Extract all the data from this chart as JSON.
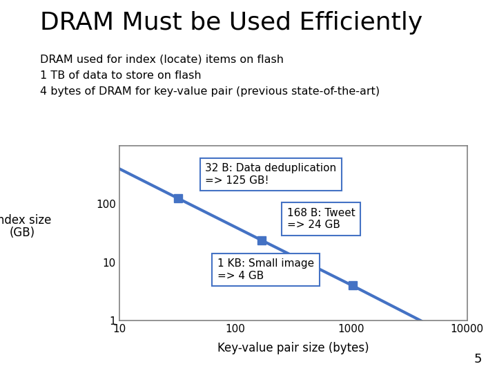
{
  "title": "DRAM Must be Used Efficiently",
  "subtitle_lines": [
    "DRAM used for index (locate) items on flash",
    "1 TB of data to store on flash",
    "4 bytes of DRAM for key-value pair (previous state-of-the-art)"
  ],
  "xlabel": "Key-value pair size (bytes)",
  "ylabel_line1": "Index size",
  "ylabel_line2": "(GB)",
  "line_color": "#4472C4",
  "line_width": 3.0,
  "marker_color": "#4472C4",
  "marker_size": 8,
  "data_points_x": [
    32,
    168,
    1024
  ],
  "data_points_y": [
    125,
    24,
    4
  ],
  "line_x": [
    10,
    32,
    168,
    1024,
    4000
  ],
  "line_y": [
    400,
    125,
    24,
    4,
    1.0
  ],
  "ann0_text": "32 B: Data deduplication\n=> 125 GB!",
  "ann1_text": "168 B: Tweet\n=> 24 GB",
  "ann2_text": "1 KB: Small image\n=> 4 GB",
  "page_number": "5",
  "background_color": "#ffffff",
  "title_fontsize": 26,
  "subtitle_fontsize": 11.5,
  "axis_label_fontsize": 12,
  "tick_fontsize": 11,
  "annotation_fontsize": 11,
  "xmin": 10,
  "xmax": 10000,
  "ymin": 1,
  "ymax": 1000,
  "spine_color": "#808080",
  "ann_edge_color": "#4472C4"
}
